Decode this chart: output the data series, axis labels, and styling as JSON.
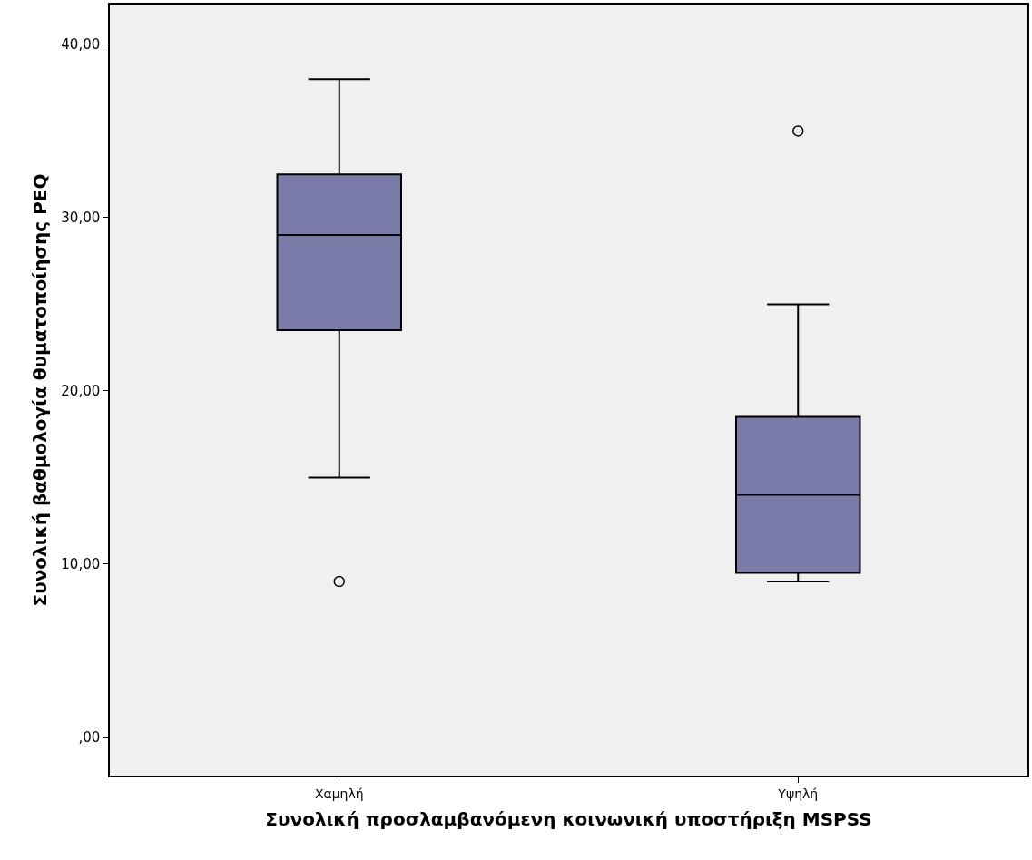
{
  "chart_data": {
    "type": "box",
    "xlabel": "Συνολική προσλαμβανόμενη κοινωνική υποστήριξη MSPSS",
    "ylabel": "Συνολική βαθμολογία θυματοποίησης PEQ",
    "categories": [
      "Χαμηλή",
      "Υψηλή"
    ],
    "color": "#7b7ba9",
    "boxes": [
      {
        "low": 15,
        "q1": 23.5,
        "median": 29,
        "q3": 32.5,
        "high": 38,
        "outliers": [
          9
        ]
      },
      {
        "low": 9,
        "q1": 9.5,
        "median": 14,
        "q3": 18.5,
        "high": 25,
        "outliers": [
          35
        ]
      }
    ],
    "ylim": [
      -2.2,
      42.3
    ],
    "yticks": [
      {
        "value": 0,
        "label": ",00"
      },
      {
        "value": 10,
        "label": "10,00"
      },
      {
        "value": 20,
        "label": "20,00"
      },
      {
        "value": 30,
        "label": "30,00"
      },
      {
        "value": 40,
        "label": "40,00"
      }
    ],
    "grid": false
  }
}
